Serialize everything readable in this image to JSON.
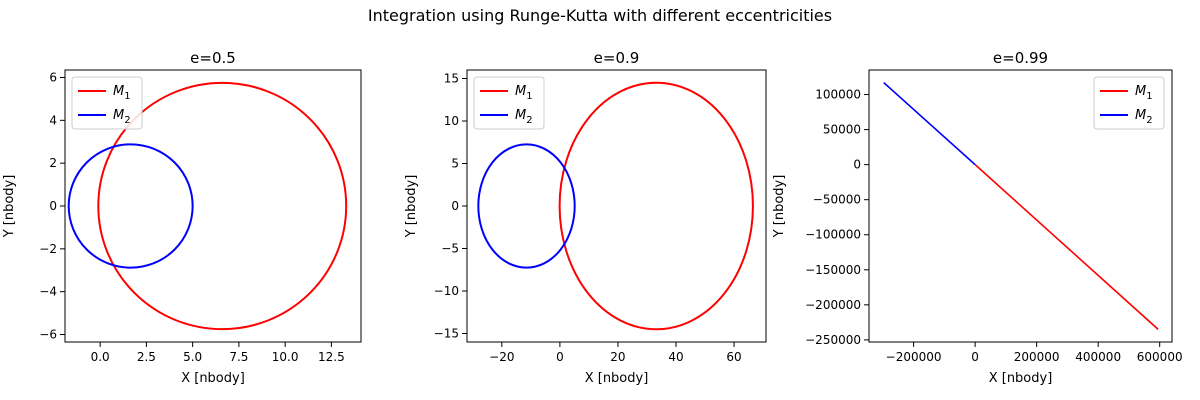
{
  "figure": {
    "suptitle": "Integration using Runge-Kutta with different eccentricities"
  },
  "chart_data": [
    {
      "type": "line",
      "title": "e=0.5",
      "xlabel": "X [nbody]",
      "ylabel": "Y [nbody]",
      "xlim": [
        -1.9,
        14.1
      ],
      "ylim": [
        -6.35,
        6.35
      ],
      "xticks": [
        0.0,
        2.5,
        5.0,
        7.5,
        10.0,
        12.5
      ],
      "xtick_labels": [
        "0.0",
        "2.5",
        "5.0",
        "7.5",
        "10.0",
        "12.5"
      ],
      "yticks": [
        -6,
        -4,
        -2,
        0,
        2,
        4,
        6
      ],
      "ytick_labels": [
        "−6",
        "−4",
        "−2",
        "0",
        "2",
        "4",
        "6"
      ],
      "legend": "upper left",
      "series": [
        {
          "name": "M_1",
          "color": "#ff0000",
          "shape": "ellipse",
          "center": [
            6.6,
            0.0
          ],
          "semi_axes": [
            6.7,
            5.75
          ]
        },
        {
          "name": "M_2",
          "color": "#0000ff",
          "shape": "ellipse",
          "center": [
            1.65,
            0.0
          ],
          "semi_axes": [
            3.35,
            2.88
          ]
        }
      ]
    },
    {
      "type": "line",
      "title": "e=0.9",
      "xlabel": "X [nbody]",
      "ylabel": "Y [nbody]",
      "xlim": [
        -32,
        71
      ],
      "ylim": [
        -16,
        16
      ],
      "xticks": [
        -20,
        0,
        20,
        40,
        60
      ],
      "xtick_labels": [
        "−20",
        "0",
        "20",
        "40",
        "60"
      ],
      "yticks": [
        -15,
        -10,
        -5,
        0,
        5,
        10,
        15
      ],
      "ytick_labels": [
        "−15",
        "−10",
        "−5",
        "0",
        "5",
        "10",
        "15"
      ],
      "legend": "upper left",
      "series": [
        {
          "name": "M_1",
          "color": "#ff0000",
          "shape": "ellipse",
          "center": [
            33.2,
            0.0
          ],
          "semi_axes": [
            33.3,
            14.5
          ]
        },
        {
          "name": "M_2",
          "color": "#0000ff",
          "shape": "ellipse",
          "center": [
            -11.5,
            0.0
          ],
          "semi_axes": [
            16.6,
            7.25
          ]
        }
      ]
    },
    {
      "type": "line",
      "title": "e=0.99",
      "xlabel": "X [nbody]",
      "ylabel": "Y [nbody]",
      "xlim": [
        -345000,
        640000
      ],
      "ylim": [
        -253000,
        135000
      ],
      "xticks": [
        -200000,
        0,
        200000,
        400000,
        600000
      ],
      "xtick_labels": [
        "−200000",
        "0",
        "200000",
        "400000",
        "600000"
      ],
      "yticks": [
        -250000,
        -200000,
        -150000,
        -100000,
        -50000,
        0,
        50000,
        100000
      ],
      "ytick_labels": [
        "−250000",
        "−200000",
        "−150000",
        "−100000",
        "−50000",
        "0",
        "50000",
        "100000"
      ],
      "legend": "upper right",
      "series": [
        {
          "name": "M_1",
          "color": "#ff0000",
          "shape": "line",
          "x": [
            0,
            595000
          ],
          "y": [
            0,
            -235000
          ]
        },
        {
          "name": "M_2",
          "color": "#0000ff",
          "shape": "line",
          "x": [
            -297000,
            0
          ],
          "y": [
            117000,
            0
          ]
        }
      ]
    }
  ]
}
